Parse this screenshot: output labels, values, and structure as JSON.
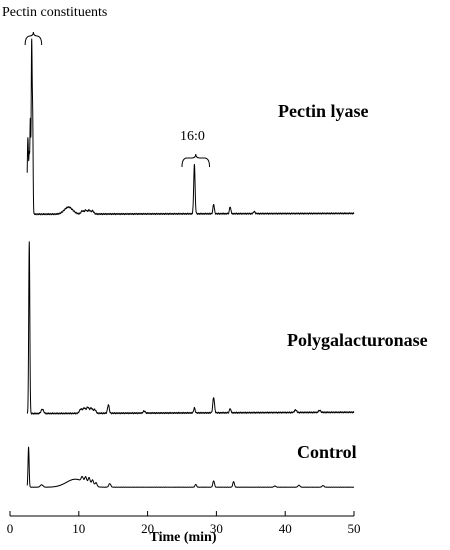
{
  "chart_data": {
    "type": "line",
    "xlabel": "Time (min)",
    "xlim": [
      0,
      50
    ],
    "x_ticks": [
      "0",
      "10",
      "20",
      "30",
      "40",
      "50"
    ],
    "annotations": {
      "pectin_constituents": {
        "text": "Pectin constituents",
        "x_range": [
          2.2,
          4.6
        ]
      },
      "fatty_acid": {
        "text": "16:0",
        "x_range": [
          25,
          29
        ]
      }
    },
    "series": [
      {
        "name": "Pectin lyase",
        "baseline": 0.01,
        "drift_end": 0.015,
        "peaks": [
          [
            2.6,
            0.44,
            0.09
          ],
          [
            2.8,
            0.3,
            0.06
          ],
          [
            2.95,
            0.52,
            0.06
          ],
          [
            3.15,
            0.98,
            0.07
          ],
          [
            3.3,
            0.5,
            0.06
          ],
          [
            8.5,
            0.04,
            0.6
          ],
          [
            10.5,
            0.018,
            0.18
          ],
          [
            11.0,
            0.022,
            0.18
          ],
          [
            11.5,
            0.022,
            0.18
          ],
          [
            12.0,
            0.018,
            0.18
          ],
          [
            26.8,
            0.28,
            0.1
          ],
          [
            29.6,
            0.055,
            0.1
          ],
          [
            32.0,
            0.04,
            0.1
          ],
          [
            35.5,
            0.012,
            0.12
          ]
        ]
      },
      {
        "name": "Polygalacturonase",
        "baseline": 0.008,
        "drift_end": 0.016,
        "peaks": [
          [
            2.8,
            1.0,
            0.08
          ],
          [
            4.7,
            0.025,
            0.18
          ],
          [
            10.3,
            0.025,
            0.2
          ],
          [
            10.8,
            0.03,
            0.18
          ],
          [
            11.3,
            0.035,
            0.18
          ],
          [
            11.8,
            0.03,
            0.18
          ],
          [
            12.3,
            0.022,
            0.18
          ],
          [
            14.3,
            0.05,
            0.12
          ],
          [
            19.5,
            0.012,
            0.15
          ],
          [
            26.8,
            0.03,
            0.1
          ],
          [
            29.6,
            0.09,
            0.12
          ],
          [
            32.0,
            0.025,
            0.1
          ],
          [
            41.5,
            0.015,
            0.15
          ],
          [
            45.0,
            0.012,
            0.15
          ]
        ]
      },
      {
        "name": "Control",
        "baseline": 0.02,
        "drift_end": 0.02,
        "peaks": [
          [
            2.7,
            1.0,
            0.08
          ],
          [
            4.6,
            0.06,
            0.2
          ],
          [
            9.5,
            0.2,
            1.3
          ],
          [
            10.5,
            0.12,
            0.15
          ],
          [
            11.0,
            0.16,
            0.15
          ],
          [
            11.5,
            0.18,
            0.15
          ],
          [
            12.0,
            0.15,
            0.15
          ],
          [
            12.5,
            0.1,
            0.15
          ],
          [
            14.5,
            0.09,
            0.15
          ],
          [
            27.0,
            0.07,
            0.12
          ],
          [
            29.6,
            0.16,
            0.12
          ],
          [
            32.5,
            0.14,
            0.12
          ],
          [
            38.5,
            0.03,
            0.15
          ],
          [
            42.0,
            0.05,
            0.15
          ],
          [
            45.5,
            0.04,
            0.15
          ]
        ]
      }
    ]
  }
}
